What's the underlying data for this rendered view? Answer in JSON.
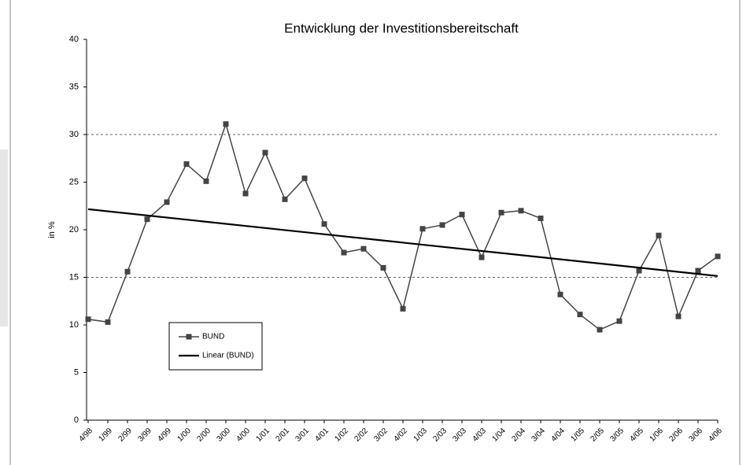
{
  "chart_data": {
    "type": "line",
    "title": "Entwicklung der Investitionsbereitschaft",
    "ylabel": "in %",
    "categories": [
      "4/98",
      "1/99",
      "2/99",
      "3/99",
      "4/99",
      "1/00",
      "2/00",
      "3/00",
      "4/00",
      "1/01",
      "2/01",
      "3/01",
      "4/01",
      "1/02",
      "2/02",
      "3/02",
      "4/02",
      "1/03",
      "2/03",
      "3/03",
      "4/03",
      "1/04",
      "2/04",
      "3/04",
      "4/04",
      "1/05",
      "2/05",
      "3/05",
      "4/05",
      "1/06",
      "2/06",
      "3/06",
      "4/06"
    ],
    "series": [
      {
        "name": "BUND",
        "color": "#444444",
        "values": [
          10.6,
          10.3,
          15.6,
          21.1,
          22.9,
          26.9,
          25.1,
          31.1,
          23.8,
          28.1,
          23.2,
          25.4,
          20.6,
          17.6,
          18.0,
          16.0,
          11.7,
          20.1,
          20.5,
          21.6,
          17.1,
          21.8,
          22.0,
          21.2,
          13.2,
          11.1,
          9.5,
          10.4,
          15.7,
          19.4,
          10.9,
          15.7,
          17.2
        ]
      }
    ],
    "trendline": {
      "name": "Linear (BUND)",
      "kind": "linear",
      "color": "#000000"
    },
    "ylim": [
      0,
      40
    ],
    "yticks": [
      0,
      5,
      10,
      15,
      20,
      25,
      30,
      35,
      40
    ],
    "grid_values": [
      15,
      30
    ]
  }
}
